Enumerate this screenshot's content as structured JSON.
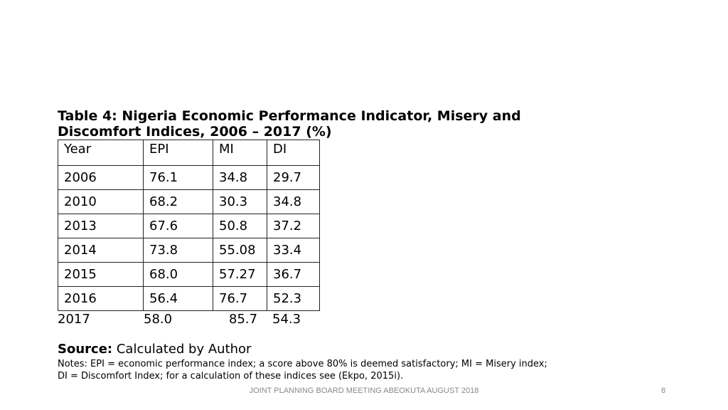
{
  "title_line1": "Table 4: Nigeria Economic Performance Indicator, Misery and",
  "title_line2": "Discomfort Indices, 2006 – 2017 (%)",
  "table": {
    "headers": [
      "Year",
      "EPI",
      "MI",
      "DI"
    ],
    "rows": [
      [
        "2006",
        "76.1",
        "34.8",
        "29.7"
      ],
      [
        "2010",
        "68.2",
        "30.3",
        "34.8"
      ],
      [
        "2013",
        "67.6",
        "50.8",
        "37.2"
      ],
      [
        "2014",
        "73.8",
        "55.08",
        "33.4"
      ],
      [
        "2015",
        "68.0",
        "57.27",
        "36.7"
      ],
      [
        "2016",
        "56.4",
        "76.7",
        "52.3"
      ]
    ],
    "last_row": [
      "2017",
      "58.0",
      "85.7",
      "54.3"
    ]
  },
  "source_label": "Source:",
  "source_text": "Calculated by Author",
  "notes_line1": "Notes: EPI = economic performance index; a score above 80% is deemed satisfactory; MI = Misery index;",
  "notes_line2": "DI = Discomfort Index; for a calculation of these indices see (Ekpo, 2015i).",
  "footer": "JOINT PLANNING BOARD MEETING ABEOKUTA AUGUST 2018",
  "page_number": "8"
}
